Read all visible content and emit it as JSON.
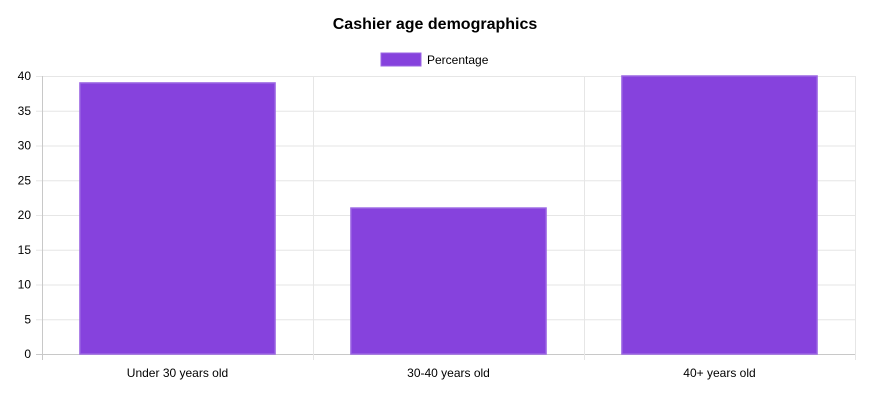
{
  "chart_data": {
    "type": "bar",
    "title": "Cashier age demographics",
    "categories": [
      "Under 30 years old",
      "30-40 years old",
      "40+ years old"
    ],
    "series": [
      {
        "name": "Percentage",
        "values": [
          39,
          21,
          40
        ],
        "color": "#8642DD"
      }
    ],
    "xlabel": "",
    "ylabel": "",
    "ylim": [
      0,
      40
    ],
    "yticks": [
      0,
      5,
      10,
      15,
      20,
      25,
      30,
      35,
      40
    ],
    "grid": true,
    "legend_position": "top"
  }
}
